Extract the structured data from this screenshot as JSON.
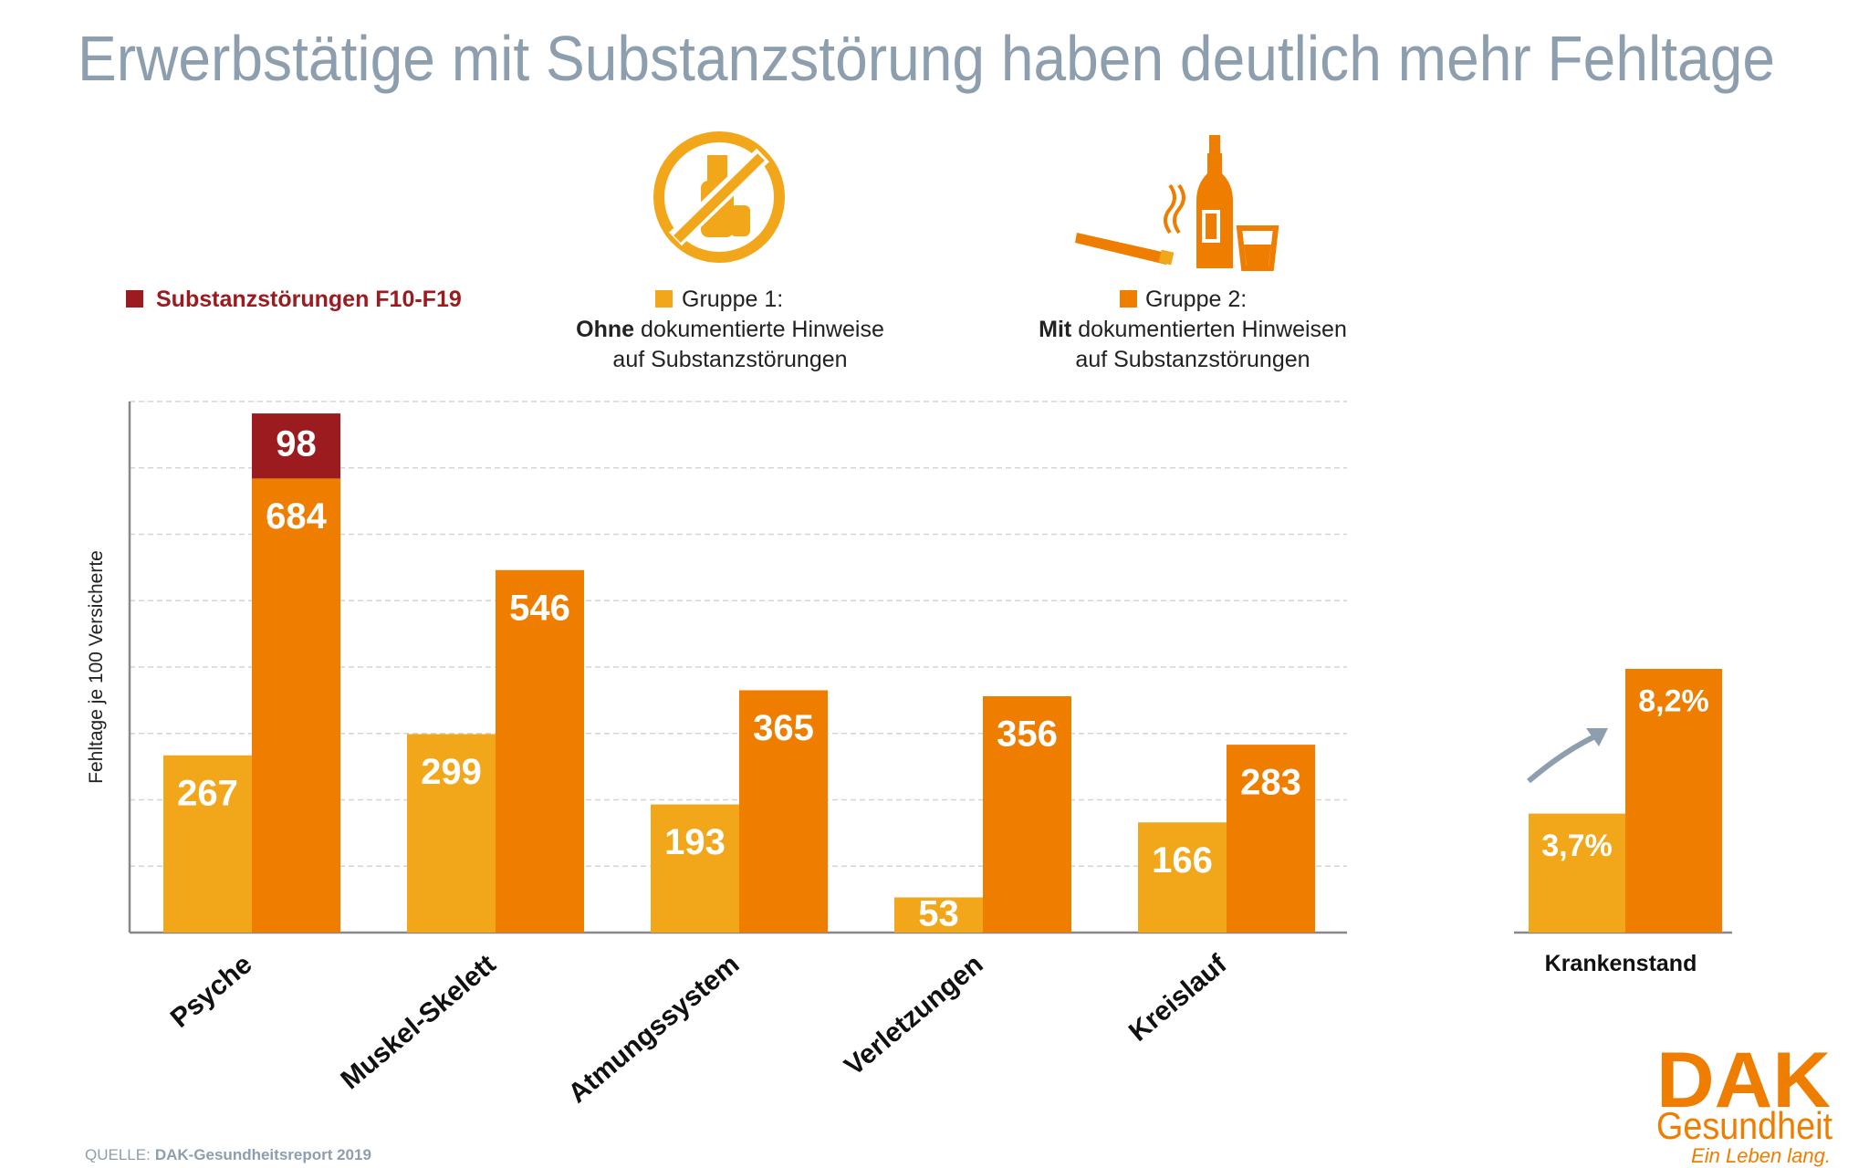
{
  "chart_data": [
    {
      "type": "bar",
      "title": "Erwerbstätige mit Substanzstörung haben deutlich mehr Fehltage",
      "y_label": "Fehltage je 100 Versicherte",
      "categories": [
        "Psyche",
        "Muskel-Skelett",
        "Atmungssystem",
        "Verletzungen",
        "Kreislauf"
      ],
      "series": [
        {
          "name": "Gruppe 1:",
          "note_bold": "Ohne",
          "note": "dokumentierte Hinweise",
          "note_line2": "auf Substanzstörungen",
          "color": "#f2a71b",
          "values": [
            267,
            299,
            193,
            53,
            166
          ]
        },
        {
          "name": "Gruppe 2:",
          "note_bold": "Mit",
          "note": "dokumentierten Hinweisen",
          "note_line2": "auf Substanzstörungen",
          "color": "#ee7d00",
          "values": [
            684,
            546,
            365,
            356,
            283
          ]
        },
        {
          "name": "Substanzstörungen F10-F19",
          "color": "#9b1b1f",
          "stacked": true,
          "values": [
            98,
            null,
            null,
            null,
            null
          ]
        }
      ],
      "ylim": [
        0,
        800
      ],
      "yticks": [
        0,
        100,
        200,
        300,
        400,
        500,
        600,
        700,
        800
      ],
      "grid": true
    },
    {
      "type": "bar",
      "categories": [
        "Krankenstand"
      ],
      "series": [
        {
          "color": "#f2a71b",
          "values": [
            3.7
          ],
          "value_labels": [
            "3,7%"
          ]
        },
        {
          "color": "#ee7d00",
          "values": [
            8.2
          ],
          "value_labels": [
            "8,2%"
          ]
        }
      ],
      "ylim": [
        0,
        8.2
      ]
    }
  ],
  "source_label": "QUELLE:",
  "source": "DAK-Gesundheitsreport 2019",
  "logo": {
    "brand": "DAK",
    "name": "Gesundheit",
    "slogan": "Ein Leben lang."
  }
}
